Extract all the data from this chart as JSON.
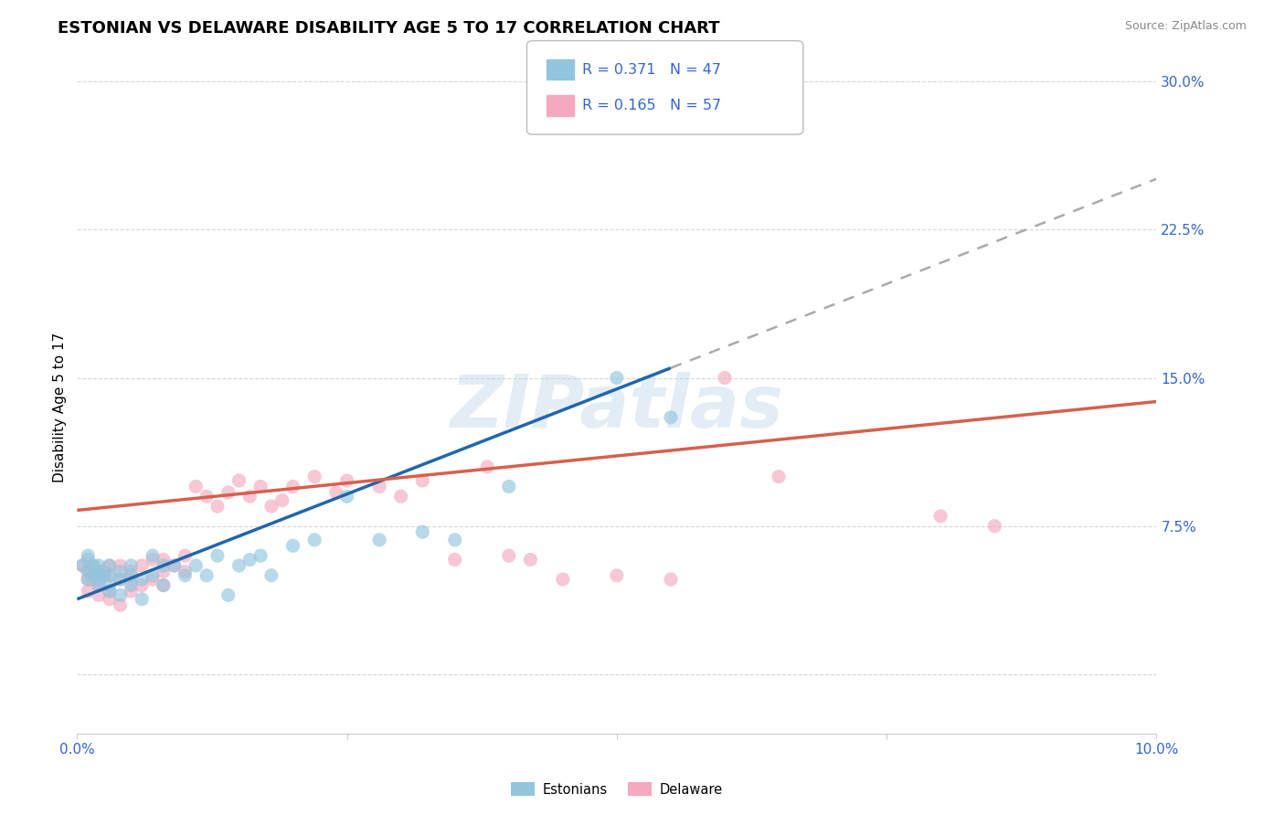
{
  "title": "ESTONIAN VS DELAWARE DISABILITY AGE 5 TO 17 CORRELATION CHART",
  "source": "Source: ZipAtlas.com",
  "ylabel": "Disability Age 5 to 17",
  "xmin": 0.0,
  "xmax": 0.1,
  "ymin": -0.03,
  "ymax": 0.3,
  "yticks": [
    0.0,
    0.075,
    0.15,
    0.225,
    0.3
  ],
  "ytick_labels": [
    "",
    "7.5%",
    "15.0%",
    "22.5%",
    "30.0%"
  ],
  "xticks": [
    0.0,
    0.025,
    0.05,
    0.075,
    0.1
  ],
  "xtick_labels": [
    "0.0%",
    "",
    "",
    "",
    "10.0%"
  ],
  "r_estonian": 0.371,
  "n_estonian": 47,
  "r_delaware": 0.165,
  "n_delaware": 57,
  "color_estonian": "#92C5DE",
  "color_delaware": "#F4A9BE",
  "trendline_estonian_color": "#2166AC",
  "trendline_delaware_color": "#D6604D",
  "trendline_dash_color": "#AAAAAA",
  "background_color": "#FFFFFF",
  "grid_color": "#CCCCCC",
  "watermark_text": "ZIPatlas",
  "legend_box_color": "#E8F0F8",
  "legend_text_color": "#3366CC",
  "ytick_color": "#3366CC",
  "xtick_color_ends": "#3366CC",
  "estonian_x": [
    0.0005,
    0.001,
    0.001,
    0.001,
    0.001,
    0.0015,
    0.0015,
    0.002,
    0.002,
    0.002,
    0.002,
    0.0025,
    0.003,
    0.003,
    0.003,
    0.003,
    0.004,
    0.004,
    0.004,
    0.005,
    0.005,
    0.005,
    0.006,
    0.006,
    0.007,
    0.007,
    0.008,
    0.008,
    0.009,
    0.01,
    0.011,
    0.012,
    0.013,
    0.014,
    0.015,
    0.016,
    0.017,
    0.018,
    0.02,
    0.022,
    0.025,
    0.028,
    0.032,
    0.035,
    0.04,
    0.05,
    0.055
  ],
  "estonian_y": [
    0.055,
    0.06,
    0.058,
    0.052,
    0.048,
    0.055,
    0.05,
    0.052,
    0.055,
    0.048,
    0.045,
    0.05,
    0.055,
    0.05,
    0.045,
    0.042,
    0.052,
    0.048,
    0.04,
    0.055,
    0.05,
    0.045,
    0.048,
    0.038,
    0.06,
    0.05,
    0.055,
    0.045,
    0.055,
    0.05,
    0.055,
    0.05,
    0.06,
    0.04,
    0.055,
    0.058,
    0.06,
    0.05,
    0.065,
    0.068,
    0.09,
    0.068,
    0.072,
    0.068,
    0.095,
    0.15,
    0.13
  ],
  "delaware_x": [
    0.0005,
    0.001,
    0.001,
    0.001,
    0.0015,
    0.0015,
    0.002,
    0.002,
    0.002,
    0.0025,
    0.003,
    0.003,
    0.003,
    0.003,
    0.004,
    0.004,
    0.004,
    0.005,
    0.005,
    0.005,
    0.006,
    0.006,
    0.007,
    0.007,
    0.008,
    0.008,
    0.008,
    0.009,
    0.01,
    0.01,
    0.011,
    0.012,
    0.013,
    0.014,
    0.015,
    0.016,
    0.017,
    0.018,
    0.019,
    0.02,
    0.022,
    0.024,
    0.025,
    0.028,
    0.03,
    0.032,
    0.035,
    0.038,
    0.04,
    0.042,
    0.045,
    0.05,
    0.055,
    0.06,
    0.065,
    0.08,
    0.085
  ],
  "delaware_y": [
    0.055,
    0.052,
    0.048,
    0.042,
    0.055,
    0.048,
    0.05,
    0.045,
    0.04,
    0.052,
    0.055,
    0.05,
    0.042,
    0.038,
    0.055,
    0.048,
    0.035,
    0.052,
    0.048,
    0.042,
    0.055,
    0.045,
    0.058,
    0.048,
    0.058,
    0.052,
    0.045,
    0.055,
    0.06,
    0.052,
    0.095,
    0.09,
    0.085,
    0.092,
    0.098,
    0.09,
    0.095,
    0.085,
    0.088,
    0.095,
    0.1,
    0.092,
    0.098,
    0.095,
    0.09,
    0.098,
    0.058,
    0.105,
    0.06,
    0.058,
    0.048,
    0.05,
    0.048,
    0.15,
    0.1,
    0.08,
    0.075
  ],
  "trendline_estonian_x0": 0.0,
  "trendline_estonian_y0": 0.038,
  "trendline_estonian_x1": 0.055,
  "trendline_estonian_y1": 0.155,
  "trendline_delaware_x0": 0.0,
  "trendline_delaware_y0": 0.083,
  "trendline_delaware_x1": 0.1,
  "trendline_delaware_y1": 0.138
}
